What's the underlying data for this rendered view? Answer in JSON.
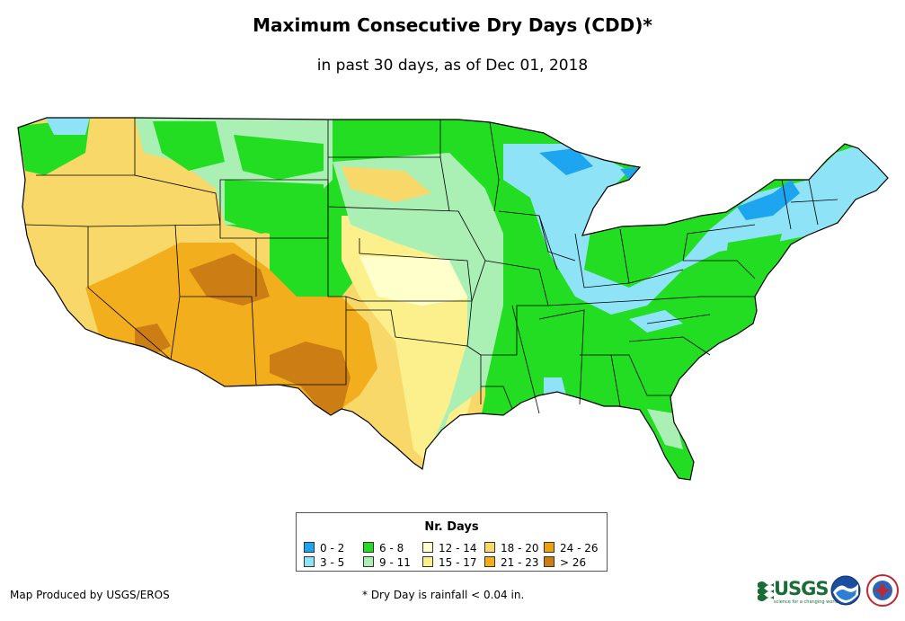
{
  "title": "Maximum Consecutive Dry Days (CDD)*",
  "subtitle": "in past 30 days, as of Dec 01, 2018",
  "legend": {
    "title": "Nr. Days",
    "items": [
      {
        "label": "0 - 2",
        "color": "#1ea5ef"
      },
      {
        "label": "3 - 5",
        "color": "#8fe3f7"
      },
      {
        "label": "6 - 8",
        "color": "#22dd22"
      },
      {
        "label": "9 - 11",
        "color": "#aaf0b4"
      },
      {
        "label": "12 - 14",
        "color": "#ffffcc"
      },
      {
        "label": "15 - 17",
        "color": "#fbf08c"
      },
      {
        "label": "18 - 20",
        "color": "#f8d868"
      },
      {
        "label": "21 - 23",
        "color": "#f2ae1c"
      },
      {
        "label": "24 - 26",
        "color": "#eba212"
      },
      {
        "label": "> 26",
        "color": "#cc7e14"
      }
    ]
  },
  "credit": "Map Produced by USGS/EROS",
  "footnote": "* Dry Day is rainfall < 0.04 in.",
  "logos": {
    "usgs": "USGS",
    "usgs_tagline": "science for a changing world",
    "noaa": "noaa-logo",
    "nws": "nws-logo"
  }
}
